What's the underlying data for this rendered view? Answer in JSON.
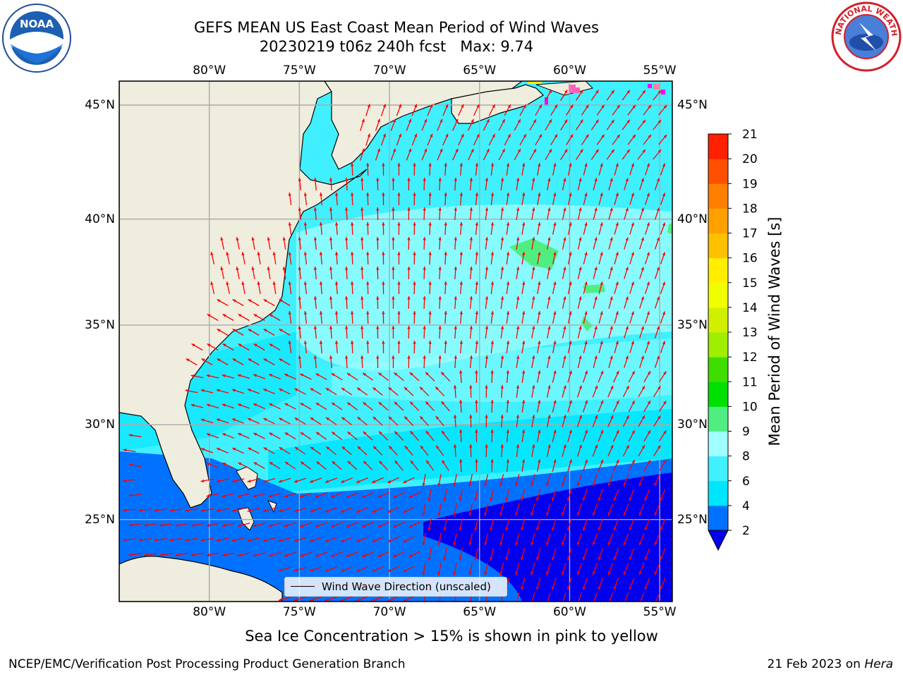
{
  "header": {
    "title_line1": "GEFS MEAN US East Coast Mean Period of Wind Waves",
    "title_line2": "20230219 t06z 240h fcst   Max: 9.74"
  },
  "logos": {
    "left": "noaa-logo",
    "right": "national-weather-service-logo",
    "right_text": "NATIONAL WEATHER SERVICE"
  },
  "map": {
    "lon_ticks": [
      "80°W",
      "75°W",
      "70°W",
      "65°W",
      "60°W",
      "55°W"
    ],
    "lat_ticks": [
      "45°N",
      "40°N",
      "35°N",
      "30°N",
      "25°N"
    ],
    "lon_values": [
      -80,
      -75,
      -70,
      -65,
      -60,
      -55
    ],
    "lat_values": [
      45,
      40,
      35,
      30,
      25
    ],
    "extent": {
      "lon": [
        -85,
        -54.3
      ],
      "lat": [
        20.5,
        46
      ]
    },
    "land_color": "#efedde",
    "grid": true,
    "arrow_color": "#ff0000",
    "legend_label": "Wind Wave Direction (unscaled)",
    "legend_placement": "lower-center"
  },
  "colorbar": {
    "label": "Mean Period of Wind Waves [s]",
    "ticks": [
      "2",
      "4",
      "6",
      "8",
      "9",
      "10",
      "11",
      "12",
      "13",
      "14",
      "15",
      "16",
      "17",
      "18",
      "19",
      "20",
      "21"
    ],
    "colors": [
      "#0072ff",
      "#00e5ff",
      "#40f0ff",
      "#a0ffff",
      "#50ee80",
      "#00e000",
      "#40dd00",
      "#a0ee00",
      "#d0f000",
      "#f0ff00",
      "#ffee00",
      "#ffc000",
      "#ffa000",
      "#ff8000",
      "#ff5000",
      "#ff2000"
    ],
    "under_color": "#0000ee",
    "extend": "min"
  },
  "note": "Sea Ice Concentration > 15% is shown in pink to yellow",
  "footer": {
    "left": "NCEP/EMC/Verification Post Processing Product Generation Branch",
    "right_date": "21 Feb 2023 on ",
    "right_host": "Hera"
  }
}
